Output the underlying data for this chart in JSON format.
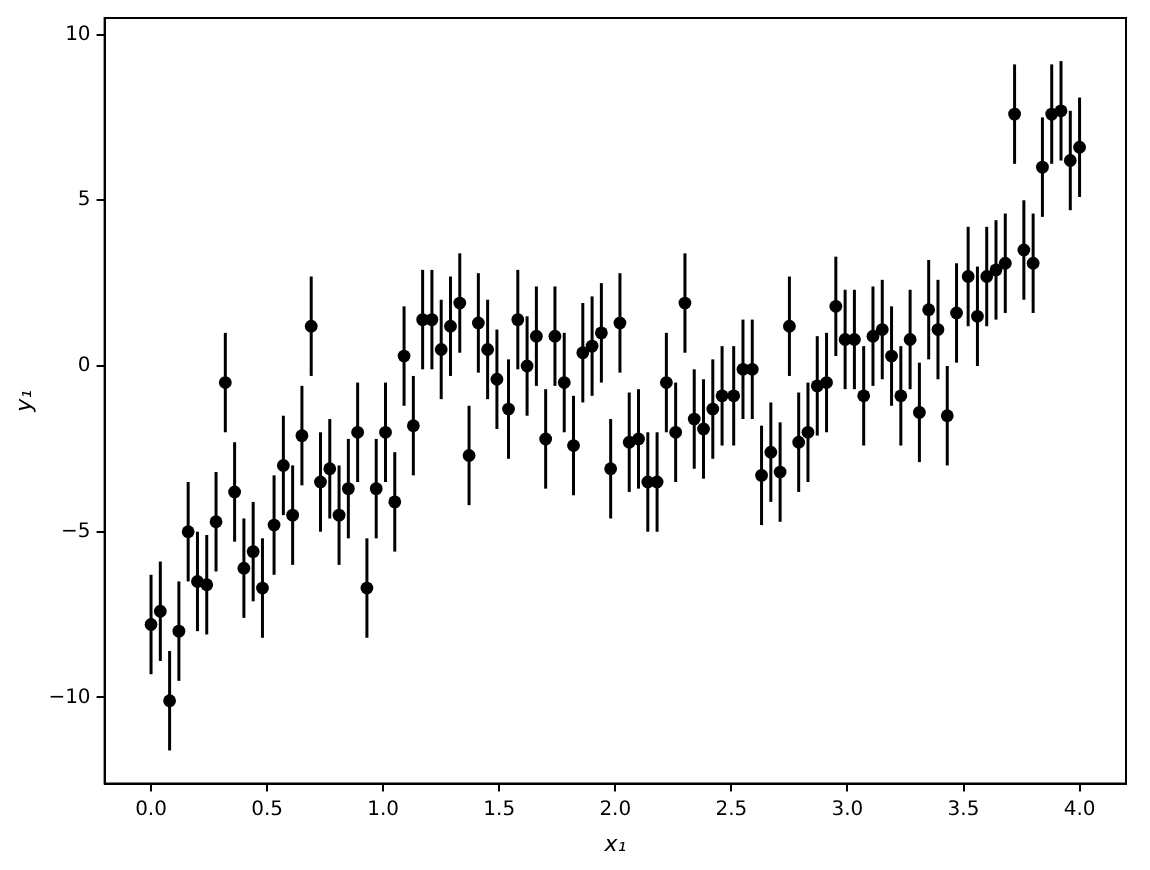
{
  "chart_data": {
    "type": "scatter",
    "xlabel": "x₁",
    "ylabel": "y₁",
    "xlim": [
      -0.2,
      4.2
    ],
    "xticks": [
      {
        "value": 0,
        "label": "0.0"
      },
      {
        "value": 0.5,
        "label": "0.5"
      },
      {
        "value": 1,
        "label": "1.0"
      },
      {
        "value": 1.5,
        "label": "1.5"
      },
      {
        "value": 2,
        "label": "2.0"
      },
      {
        "value": 2.5,
        "label": "2.5"
      },
      {
        "value": 3,
        "label": "3.0"
      },
      {
        "value": 3.5,
        "label": "3.5"
      },
      {
        "value": 4,
        "label": "4.0"
      }
    ],
    "ylim": [
      -12.6,
      10.5
    ],
    "yticks": [
      {
        "value": -10,
        "label": "−10"
      },
      {
        "value": -5,
        "label": "−5"
      },
      0,
      5,
      10
    ],
    "grid": false,
    "legend": false,
    "marker": "circle",
    "series": [
      {
        "color": "#000000",
        "x": [
          0,
          0.04,
          0.08,
          0.12,
          0.16,
          0.2,
          0.24,
          0.28,
          0.32,
          0.36,
          0.4,
          0.44,
          0.48,
          0.53,
          0.57,
          0.61,
          0.65,
          0.69,
          0.73,
          0.77,
          0.81,
          0.85,
          0.89,
          0.93,
          0.97,
          1.01,
          1.05,
          1.09,
          1.13,
          1.17,
          1.21,
          1.25,
          1.29,
          1.33,
          1.37,
          1.41,
          1.45,
          1.49,
          1.54,
          1.58,
          1.62,
          1.66,
          1.7,
          1.74,
          1.78,
          1.82,
          1.86,
          1.9,
          1.94,
          1.98,
          2.02,
          2.06,
          2.1,
          2.14,
          2.18,
          2.22,
          2.26,
          2.3,
          2.34,
          2.38,
          2.42,
          2.46,
          2.51,
          2.55,
          2.59,
          2.63,
          2.67,
          2.71,
          2.75,
          2.79,
          2.83,
          2.87,
          2.91,
          2.95,
          2.99,
          3.03,
          3.07,
          3.11,
          3.15,
          3.19,
          3.23,
          3.27,
          3.31,
          3.35,
          3.39,
          3.43,
          3.47,
          3.52,
          3.56,
          3.6,
          3.64,
          3.68,
          3.72,
          3.76,
          3.8,
          3.84,
          3.88,
          3.92,
          3.96,
          4.0
        ],
        "values": [
          -7.8,
          -7.4,
          -10.1,
          -8.0,
          -5.0,
          -6.5,
          -6.6,
          -4.7,
          -0.5,
          -3.8,
          -6.1,
          -5.6,
          -6.7,
          -4.8,
          -3.0,
          -4.5,
          -2.1,
          1.2,
          -3.5,
          -3.1,
          -4.5,
          -3.7,
          -2.0,
          -6.7,
          -3.7,
          -2.0,
          -4.1,
          0.3,
          -1.8,
          1.4,
          1.4,
          0.5,
          1.2,
          1.9,
          -2.7,
          1.3,
          0.5,
          -0.4,
          -1.3,
          1.4,
          0.0,
          0.9,
          -2.2,
          0.9,
          -0.5,
          -2.4,
          0.4,
          0.6,
          1.0,
          -3.1,
          1.3,
          -2.3,
          -2.2,
          -3.5,
          -3.5,
          -0.5,
          -2.0,
          1.9,
          -1.6,
          -1.9,
          -1.3,
          -0.9,
          -0.9,
          -0.1,
          -0.1,
          -3.3,
          -2.6,
          -3.2,
          1.2,
          -2.3,
          -2.0,
          -0.6,
          -0.5,
          1.8,
          0.8,
          0.8,
          -0.9,
          0.9,
          1.1,
          0.3,
          -0.9,
          0.8,
          -1.4,
          1.7,
          1.1,
          -1.5,
          1.6,
          2.7,
          1.5,
          2.7,
          2.9,
          3.1,
          7.6,
          3.5,
          3.1,
          6.0,
          7.6,
          7.7,
          6.2,
          6.6
        ],
        "errors": [
          1.5,
          1.5,
          1.5,
          1.5,
          1.5,
          1.5,
          1.5,
          1.5,
          1.5,
          1.5,
          1.5,
          1.5,
          1.5,
          1.5,
          1.5,
          1.5,
          1.5,
          1.5,
          1.5,
          1.5,
          1.5,
          1.5,
          1.5,
          1.5,
          1.5,
          1.5,
          1.5,
          1.5,
          1.5,
          1.5,
          1.5,
          1.5,
          1.5,
          1.5,
          1.5,
          1.5,
          1.5,
          1.5,
          1.5,
          1.5,
          1.5,
          1.5,
          1.5,
          1.5,
          1.5,
          1.5,
          1.5,
          1.5,
          1.5,
          1.5,
          1.5,
          1.5,
          1.5,
          1.5,
          1.5,
          1.5,
          1.5,
          1.5,
          1.5,
          1.5,
          1.5,
          1.5,
          1.5,
          1.5,
          1.5,
          1.5,
          1.5,
          1.5,
          1.5,
          1.5,
          1.5,
          1.5,
          1.5,
          1.5,
          1.5,
          1.5,
          1.5,
          1.5,
          1.5,
          1.5,
          1.5,
          1.5,
          1.5,
          1.5,
          1.5,
          1.5,
          1.5,
          1.5,
          1.5,
          1.5,
          1.5,
          1.5,
          1.5,
          1.5,
          1.5,
          1.5,
          1.5,
          1.5,
          1.5,
          1.5
        ]
      }
    ]
  }
}
